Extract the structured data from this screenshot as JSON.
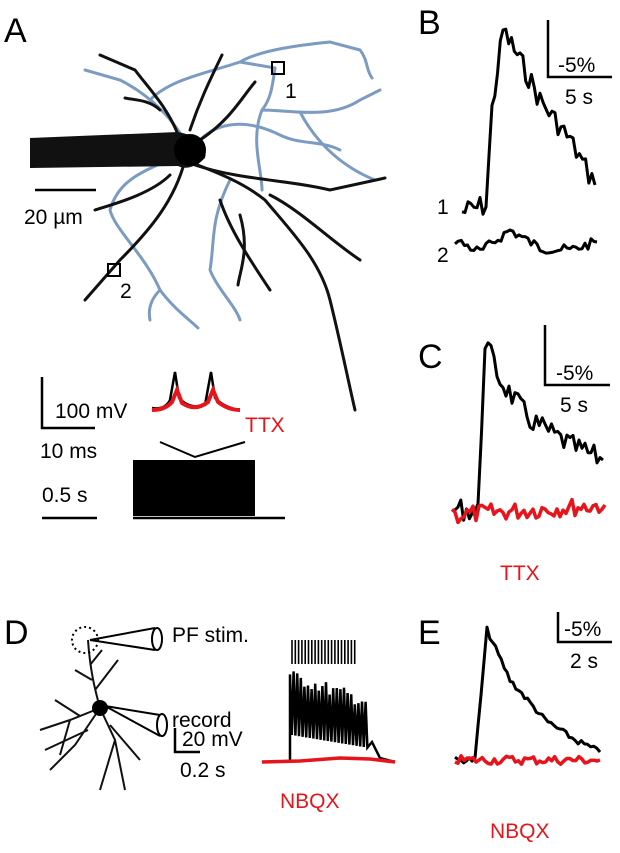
{
  "panels": {
    "A": {
      "label": "A",
      "roi_labels": [
        "1",
        "2"
      ],
      "scale_bar": "20 µm",
      "inset": {
        "voltage_scale": "100 mV",
        "time_scale": "10 ms",
        "condition": "TTX",
        "long_time_scale": "0.5 s"
      }
    },
    "B": {
      "label": "B",
      "trace_labels": [
        "1",
        "2"
      ],
      "amplitude_scale": "-5%",
      "time_scale": "5 s"
    },
    "C": {
      "label": "C",
      "amplitude_scale": "-5%",
      "time_scale": "5 s",
      "condition": "TTX"
    },
    "D": {
      "label": "D",
      "stim_label": "PF stim.",
      "record_label": "record",
      "voltage_scale": "20 mV",
      "time_scale": "0.2 s",
      "condition": "NBQX"
    },
    "E": {
      "label": "E",
      "amplitude_scale": "-5%",
      "time_scale": "2 s",
      "condition": "NBQX"
    }
  }
}
